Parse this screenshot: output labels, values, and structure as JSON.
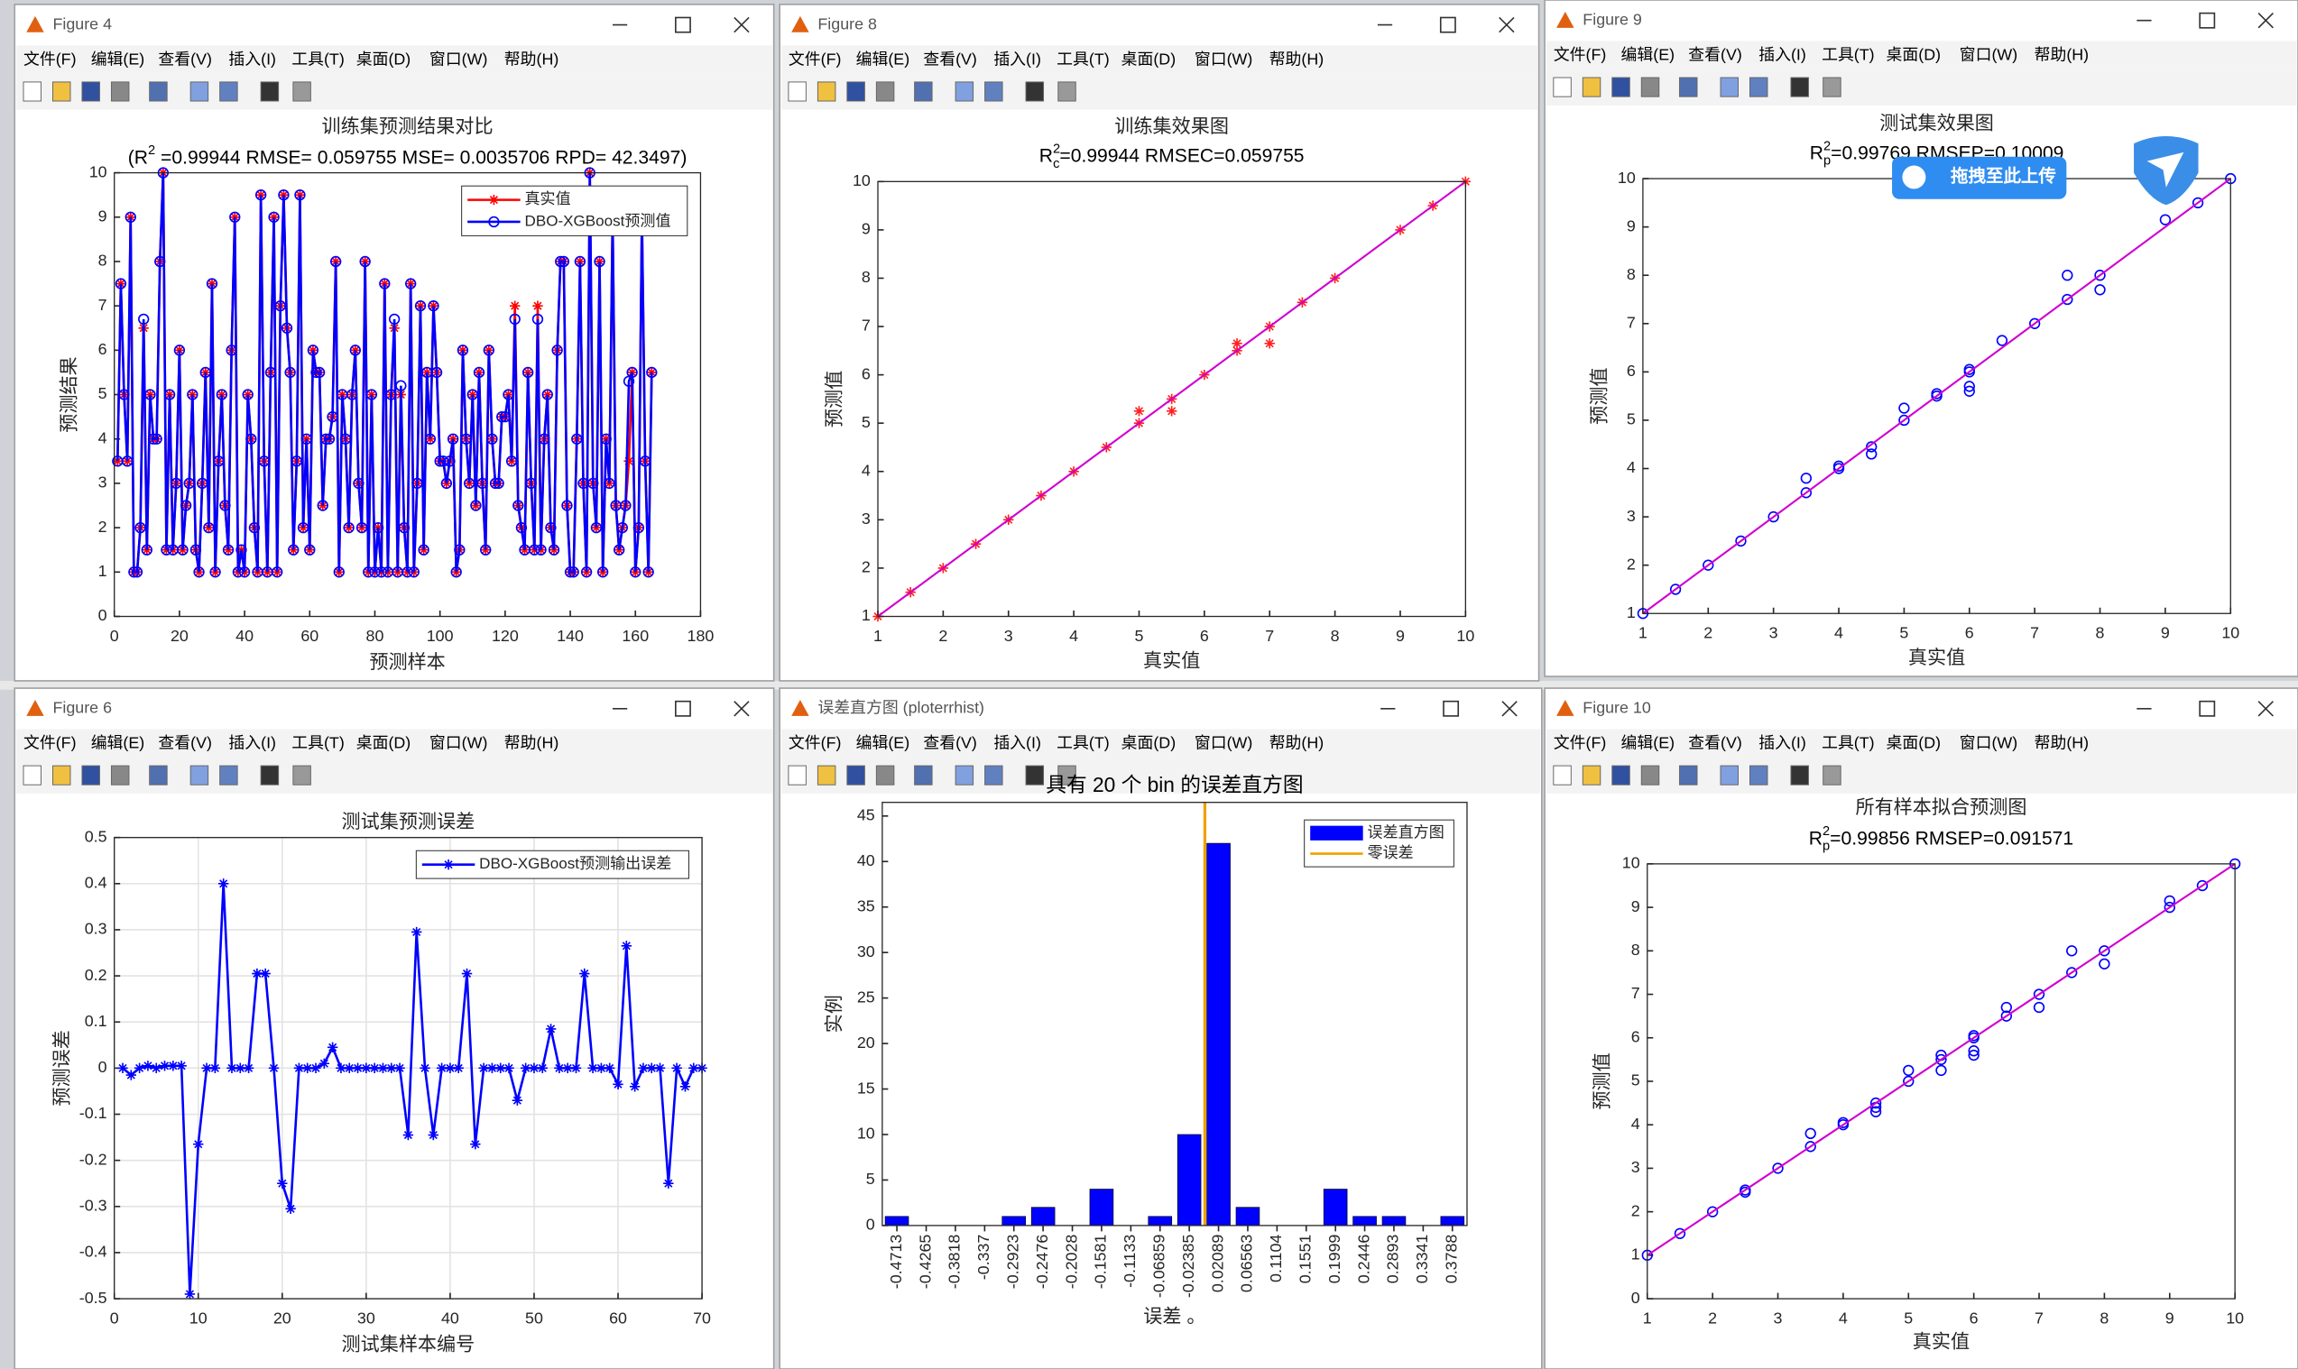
{
  "menu": [
    "文件(F)",
    "编辑(E)",
    "查看(V)",
    "插入(I)",
    "工具(T)",
    "桌面(D)",
    "窗口(W)",
    "帮助(H)"
  ],
  "windows": [
    {
      "title": "Figure 4"
    },
    {
      "title": "Figure 8"
    },
    {
      "title": "Figure 9"
    },
    {
      "title": "Figure 6"
    },
    {
      "title": "误差直方图 (ploterrhist)"
    },
    {
      "title": "Figure 10"
    }
  ],
  "overlay": {
    "label": "拖拽至此上传"
  },
  "chart_data": [
    {
      "type": "line",
      "title": "训练集预测结果对比",
      "subtitle": [
        {
          "text": "(R"
        },
        {
          "text": "2",
          "pos": "sup"
        },
        {
          "text": " =0.99944 RMSE= 0.059755 MSE= 0.0035706 RPD= 42.3497)"
        }
      ],
      "x_label": "预测样本",
      "y_label": "预测结果",
      "legend": "northeast",
      "grid": false,
      "xlim": [
        0,
        180
      ],
      "xticks": [
        0,
        20,
        40,
        60,
        80,
        100,
        120,
        140,
        160,
        180
      ],
      "ylim": [
        0,
        10
      ],
      "yticks": [
        0,
        1,
        2,
        3,
        4,
        5,
        6,
        7,
        8,
        9,
        10
      ],
      "series": [
        {
          "name": "真实值",
          "color": "#ff0000",
          "marker": "asterisk",
          "values": [
            3.5,
            7.5,
            5,
            3.5,
            9,
            1,
            1,
            2,
            6.5,
            1.5,
            5,
            4,
            4,
            8,
            10,
            1.5,
            5,
            1.5,
            3,
            6,
            1.5,
            2.5,
            3,
            5,
            1.5,
            1,
            3,
            5.5,
            2,
            7.5,
            1,
            3.5,
            5,
            2.5,
            1.5,
            6,
            9,
            1,
            1.5,
            1,
            5,
            4,
            2,
            1,
            9.5,
            3.5,
            1,
            5.5,
            9,
            1,
            7,
            9.5,
            6.5,
            5.5,
            1.5,
            3.5,
            9.5,
            2,
            4,
            1.5,
            6,
            5.5,
            5.5,
            2.5,
            4,
            4,
            4.5,
            8,
            1,
            5,
            4,
            2,
            5,
            6,
            3,
            2,
            8,
            1,
            5,
            1,
            2,
            1,
            7.5,
            1,
            5,
            6.5,
            1,
            5,
            2,
            1,
            7.5,
            1,
            3,
            7,
            1.5,
            5.5,
            4,
            7,
            5.5,
            3.5,
            3.5,
            3,
            3.5,
            4,
            1,
            1.5,
            6,
            4,
            3,
            5,
            2.5,
            5.5,
            3,
            1.5,
            6,
            4,
            3,
            3,
            4.5,
            4.5,
            5,
            3.5,
            7,
            2.5,
            2,
            1.5,
            5.5,
            3,
            1.5,
            7,
            1.5,
            4,
            5,
            2,
            1.5,
            6,
            8,
            8,
            2.5,
            1,
            1,
            4,
            8,
            3,
            1,
            10,
            3,
            2,
            8,
            1,
            4,
            3,
            9,
            2.5,
            1.5,
            2,
            2.5,
            3.5,
            5.5,
            1,
            2,
            9,
            3.5,
            1,
            5.5
          ]
        },
        {
          "name": "DBO-XGBoost预测值",
          "color": "#0000ff",
          "marker": "circle",
          "values": [
            3.5,
            7.5,
            5,
            3.5,
            9,
            1,
            1,
            2,
            6.7,
            1.5,
            5,
            4,
            4,
            8,
            10,
            1.5,
            5,
            1.5,
            3,
            6,
            1.5,
            2.5,
            3,
            5,
            1.5,
            1,
            3,
            5.5,
            2,
            7.5,
            1,
            3.5,
            5,
            2.5,
            1.5,
            6,
            9,
            1,
            1.5,
            1,
            5,
            4,
            2,
            1,
            9.5,
            3.5,
            1,
            5.5,
            9,
            1,
            7,
            9.5,
            6.5,
            5.5,
            1.5,
            3.5,
            9.5,
            2,
            4,
            1.5,
            6,
            5.5,
            5.5,
            2.5,
            4,
            4,
            4.5,
            8,
            1,
            5,
            4,
            2,
            5,
            6,
            3,
            2,
            8,
            1,
            5,
            1,
            2,
            1,
            7.5,
            1,
            5,
            6.7,
            1,
            5.2,
            2,
            1,
            7.5,
            1,
            3,
            7,
            1.5,
            5.5,
            4,
            7,
            5.5,
            3.5,
            3.5,
            3,
            3.5,
            4,
            1,
            1.5,
            6,
            4,
            3,
            5,
            2.5,
            5.5,
            3,
            1.5,
            6,
            4,
            3,
            3,
            4.5,
            4.5,
            5,
            3.5,
            6.7,
            2.5,
            2,
            1.5,
            5.5,
            3,
            1.5,
            6.7,
            1.5,
            4,
            5,
            2,
            1.5,
            6,
            8,
            8,
            2.5,
            1,
            1,
            4,
            8,
            3,
            1,
            10,
            3,
            2,
            8,
            1,
            4,
            3,
            9,
            2.5,
            1.5,
            2,
            2.5,
            5.3,
            5.5,
            1,
            2,
            9,
            3.5,
            1,
            5.5
          ]
        }
      ]
    },
    {
      "type": "scatter",
      "title": "训练集效果图",
      "subtitle": [
        {
          "text": "R"
        },
        {
          "text": "2",
          "pos": "sup"
        },
        {
          "text": "c",
          "pos": "sub"
        },
        {
          "text": "=0.99944  RMSEC=0.059755"
        }
      ],
      "x_label": "真实值",
      "y_label": "预测值",
      "marker": "asterisk",
      "color": "#ff2020",
      "fit_color": "#d000d0",
      "xlim": [
        1,
        10
      ],
      "xticks": [
        1,
        2,
        3,
        4,
        5,
        6,
        7,
        8,
        9,
        10
      ],
      "ylim": [
        1,
        10
      ],
      "yticks": [
        1,
        2,
        3,
        4,
        5,
        6,
        7,
        8,
        9,
        10
      ],
      "x": [
        1,
        1.5,
        2,
        2.5,
        3,
        3.5,
        4,
        4.5,
        5,
        5,
        5.5,
        5.5,
        6,
        6.5,
        6.5,
        7,
        7,
        7.5,
        8,
        9,
        9.5,
        10
      ],
      "values": [
        1,
        1.5,
        2,
        2.5,
        3,
        3.5,
        4,
        4.5,
        5,
        5.25,
        5.5,
        5.25,
        6,
        6.5,
        6.65,
        7,
        6.65,
        7.5,
        8,
        9,
        9.5,
        10
      ],
      "fit": {
        "x": [
          1,
          10
        ],
        "values": [
          1,
          10
        ]
      }
    },
    {
      "type": "scatter",
      "title": "测试集效果图",
      "subtitle": [
        {
          "text": "R"
        },
        {
          "text": "2",
          "pos": "sup"
        },
        {
          "text": "p",
          "pos": "sub"
        },
        {
          "text": "=0.99769  RMSEP=0.10009"
        }
      ],
      "x_label": "真实值",
      "y_label": "预测值",
      "marker": "circle",
      "color": "#0000ff",
      "fit_color": "#d000d0",
      "xlim": [
        1,
        10
      ],
      "xticks": [
        1,
        2,
        3,
        4,
        5,
        6,
        7,
        8,
        9,
        10
      ],
      "ylim": [
        1,
        10
      ],
      "yticks": [
        1,
        2,
        3,
        4,
        5,
        6,
        7,
        8,
        9,
        10
      ],
      "x": [
        1,
        1.5,
        2,
        2.5,
        3,
        3.5,
        3.5,
        4,
        4,
        4.5,
        4.5,
        5,
        5,
        5.5,
        5.5,
        6,
        6,
        6,
        6,
        6.5,
        7,
        7.5,
        7.5,
        8,
        8,
        9,
        9.5,
        10
      ],
      "values": [
        1,
        1.5,
        2,
        2.5,
        3,
        3.5,
        3.8,
        4,
        4.05,
        4.3,
        4.45,
        5,
        5.25,
        5.5,
        5.55,
        6,
        5.7,
        5.6,
        6.05,
        6.65,
        7,
        7.5,
        8,
        8,
        7.7,
        9.15,
        9.5,
        10
      ],
      "fit": {
        "x": [
          1,
          10
        ],
        "values": [
          1,
          10
        ]
      }
    },
    {
      "type": "line",
      "title": "测试集预测误差",
      "x_label": "测试集样本编号",
      "y_label": "预测误差",
      "legend": "northeast",
      "grid": true,
      "xlim": [
        0,
        70
      ],
      "xticks": [
        0,
        10,
        20,
        30,
        40,
        50,
        60,
        70
      ],
      "ylim": [
        -0.5,
        0.5
      ],
      "yticks": [
        -0.5,
        -0.4,
        -0.3,
        -0.2,
        -0.1,
        0,
        0.1,
        0.2,
        0.3,
        0.4,
        0.5
      ],
      "series": [
        {
          "name": "DBO-XGBoost预测输出误差",
          "color": "#0000ff",
          "marker": "asterisk",
          "values": [
            0,
            -0.015,
            0,
            0.005,
            0,
            0.005,
            0.005,
            0.005,
            -0.49,
            -0.165,
            0,
            0,
            0.4,
            0,
            0,
            0,
            0.205,
            0.205,
            0,
            -0.25,
            -0.305,
            0,
            0,
            0,
            0.01,
            0.045,
            0,
            0,
            0,
            0,
            0,
            0,
            0,
            0,
            -0.145,
            0.295,
            0,
            -0.145,
            0,
            0,
            0,
            0.205,
            -0.165,
            0,
            0,
            0,
            0,
            -0.07,
            0,
            0,
            0,
            0.085,
            0,
            0,
            0,
            0.205,
            0,
            0,
            0,
            -0.035,
            0.265,
            -0.04,
            0,
            0,
            0,
            -0.25,
            0,
            -0.04,
            0,
            0
          ]
        }
      ]
    },
    {
      "type": "histogram",
      "title": "具有 20 个 bin 的误差直方图",
      "x_label": "误差 。",
      "y_label": "实例",
      "legend": "northeast",
      "series_name": "误差直方图",
      "color": "#0000ff",
      "zero_name": "零误差",
      "zero_color": "#f0a000",
      "zero_line": 0,
      "bins": [
        -0.4937,
        -0.449,
        -0.4042,
        -0.3594,
        -0.3147,
        -0.2699,
        -0.2252,
        -0.1805,
        -0.1357,
        -0.091,
        -0.0462,
        -0.0015,
        0.0433,
        0.088,
        0.1327,
        0.1775,
        0.2222,
        0.267,
        0.3117,
        0.3565,
        0.4012
      ],
      "values": [
        1,
        0,
        0,
        0,
        1,
        2,
        0,
        4,
        0,
        1,
        10,
        42,
        2,
        0,
        0,
        4,
        1,
        1,
        0,
        1
      ],
      "xlim": [
        -0.4937,
        0.4012
      ],
      "xticks": [
        -0.4713,
        -0.4265,
        -0.3818,
        -0.337,
        -0.2923,
        -0.2476,
        -0.2028,
        -0.1581,
        -0.1133,
        -0.06859,
        -0.02385,
        0.02089,
        0.06563,
        0.1104,
        0.1551,
        0.1999,
        0.2446,
        0.2893,
        0.3341,
        0.3788
      ],
      "ylim": [
        0,
        46.5
      ],
      "yticks": [
        0,
        5,
        10,
        15,
        20,
        25,
        30,
        35,
        40,
        45
      ]
    },
    {
      "type": "scatter",
      "title": "所有样本拟合预测图",
      "subtitle": [
        {
          "text": "R"
        },
        {
          "text": "2",
          "pos": "sup"
        },
        {
          "text": "p",
          "pos": "sub"
        },
        {
          "text": "=0.99856  RMSEP=0.091571"
        }
      ],
      "x_label": "真实值",
      "y_label": "预测值",
      "marker": "circle",
      "color": "#0000ff",
      "fit_color": "#d000d0",
      "xlim": [
        1,
        10
      ],
      "xticks": [
        1,
        2,
        3,
        4,
        5,
        6,
        7,
        8,
        9,
        10
      ],
      "ylim": [
        0,
        10
      ],
      "yticks": [
        0,
        1,
        2,
        3,
        4,
        5,
        6,
        7,
        8,
        9,
        10
      ],
      "x": [
        1,
        1.5,
        2,
        2.5,
        2.5,
        3,
        3.5,
        3.5,
        4,
        4,
        4.5,
        4.5,
        4.5,
        5,
        5,
        5.5,
        5.5,
        5.5,
        6,
        6,
        6,
        6,
        6.5,
        6.5,
        7,
        7,
        7.5,
        7.5,
        8,
        8,
        9,
        9,
        9.5,
        10
      ],
      "values": [
        1,
        1.5,
        2,
        2.5,
        2.45,
        3,
        3.5,
        3.8,
        4,
        4.05,
        4.5,
        4.3,
        4.4,
        5,
        5.25,
        5.5,
        5.25,
        5.6,
        6,
        5.7,
        5.6,
        6.05,
        6.5,
        6.7,
        7,
        6.7,
        7.5,
        8,
        8,
        7.7,
        9,
        9.15,
        9.5,
        10
      ],
      "fit": {
        "x": [
          1,
          10
        ],
        "values": [
          1,
          10
        ]
      }
    }
  ]
}
